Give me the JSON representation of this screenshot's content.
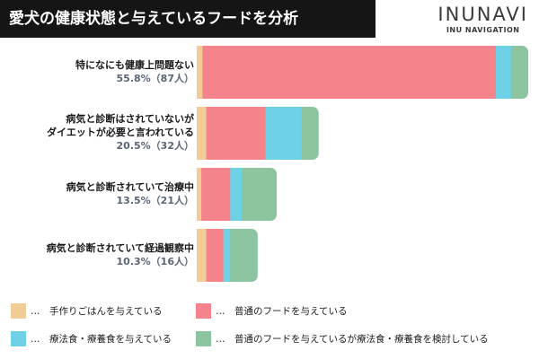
{
  "header": {
    "title": "愛犬の健康状態と与えているフードを分析",
    "brand_name": "INUNAVI",
    "brand_sub": "INU NAVIGATION"
  },
  "colors": {
    "homemade": "#f0cc96",
    "regular": "#f5838b",
    "therapeutic": "#6fd1e6",
    "considering": "#8cc4a0"
  },
  "chart_data": {
    "type": "bar",
    "orientation": "horizontal",
    "stacked": true,
    "title": "愛犬の健康状態と与えているフードを分析",
    "categories": [
      {
        "label_lines": [
          "特になにも健康上問題ない"
        ],
        "share": "55.8%（87人）"
      },
      {
        "label_lines": [
          "病気と診断はされていないが",
          "ダイエットが必要と言われている"
        ],
        "share": "20.5%（32人）"
      },
      {
        "label_lines": [
          "病気と診断されていて治療中"
        ],
        "share": "13.5%（21人）"
      },
      {
        "label_lines": [
          "病気と診断されていて経過観察中"
        ],
        "share": "10.3%（16人）"
      }
    ],
    "totals": [
      87,
      32,
      21,
      16
    ],
    "series": [
      {
        "name": "手作りごはんを与えている",
        "color": "#f0cc96",
        "values": [
          1.5,
          2.5,
          1.2,
          2.5
        ]
      },
      {
        "name": "普通のフードを与えている",
        "color": "#f5838b",
        "values": [
          77,
          15.5,
          7.6,
          4.5
        ]
      },
      {
        "name": "療法食・療養食を与えている",
        "color": "#6fd1e6",
        "values": [
          4,
          9.5,
          3,
          1.8
        ]
      },
      {
        "name": "普通のフードを与えているが療法食・療養食を検討している",
        "color": "#8cc4a0",
        "values": [
          4.5,
          4.5,
          9.2,
          7.2
        ]
      }
    ],
    "xlim": [
      0,
      87
    ],
    "grid": false,
    "axes_visible": false,
    "legend_position": "bottom",
    "legend_prefix": "…"
  }
}
